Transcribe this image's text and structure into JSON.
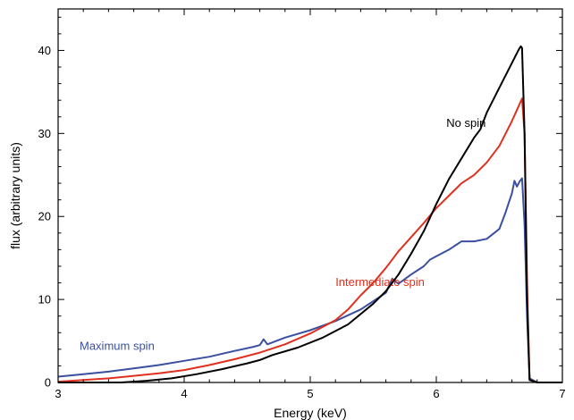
{
  "chart_data": {
    "type": "line",
    "title": "",
    "xlabel": "Energy (keV)",
    "ylabel": "flux (arbitrary units)",
    "xlim": [
      3,
      7
    ],
    "ylim": [
      0,
      45
    ],
    "xticks": [
      3,
      4,
      5,
      6,
      7
    ],
    "yticks": [
      0,
      10,
      20,
      30,
      40
    ],
    "grid": false,
    "legend": "none",
    "series": [
      {
        "name": "Maximum spin",
        "color": "#3a4fa0",
        "label_at": [
          3.17,
          3.95
        ],
        "x": [
          3.0,
          3.2,
          3.4,
          3.6,
          3.8,
          4.0,
          4.2,
          4.4,
          4.55,
          4.6,
          4.63,
          4.66,
          4.8,
          5.0,
          5.2,
          5.4,
          5.6,
          5.65,
          5.7,
          5.8,
          5.9,
          5.95,
          6.0,
          6.1,
          6.2,
          6.3,
          6.4,
          6.5,
          6.55,
          6.6,
          6.62,
          6.64,
          6.66,
          6.68,
          6.7,
          6.72,
          6.74,
          6.8,
          7.0
        ],
        "y": [
          0.7,
          1.0,
          1.3,
          1.7,
          2.1,
          2.6,
          3.1,
          3.8,
          4.3,
          4.5,
          5.2,
          4.6,
          5.4,
          6.3,
          7.4,
          8.8,
          10.8,
          12.5,
          11.9,
          13.0,
          14.0,
          14.8,
          15.2,
          16.0,
          17.0,
          17.0,
          17.3,
          18.5,
          20.5,
          22.8,
          24.3,
          23.6,
          24.2,
          24.6,
          19.0,
          8.0,
          0.5,
          0.0,
          0.0
        ]
      },
      {
        "name": "Intermediate spin",
        "color": "#e0301e",
        "label_at": [
          5.2,
          11.6
        ],
        "x": [
          3.0,
          3.2,
          3.4,
          3.6,
          3.8,
          4.0,
          4.2,
          4.4,
          4.6,
          4.8,
          5.0,
          5.2,
          5.3,
          5.4,
          5.5,
          5.6,
          5.7,
          5.8,
          5.9,
          6.0,
          6.1,
          6.2,
          6.3,
          6.4,
          6.5,
          6.6,
          6.65,
          6.68,
          6.7,
          6.72,
          6.74,
          6.8,
          7.0
        ],
        "y": [
          0.1,
          0.3,
          0.5,
          0.8,
          1.1,
          1.5,
          2.1,
          2.8,
          3.6,
          4.6,
          5.9,
          7.5,
          8.8,
          10.5,
          12.0,
          13.8,
          15.8,
          17.5,
          19.2,
          21.0,
          22.5,
          24.0,
          25.0,
          26.5,
          28.5,
          31.5,
          33.2,
          34.2,
          30.0,
          12.0,
          0.3,
          0.0,
          0.0
        ]
      },
      {
        "name": "No spin",
        "color": "#000000",
        "label_at": [
          6.08,
          30.8
        ],
        "x": [
          3.0,
          3.3,
          3.5,
          3.7,
          3.9,
          4.1,
          4.3,
          4.5,
          4.6,
          4.7,
          4.9,
          5.1,
          5.3,
          5.5,
          5.6,
          5.7,
          5.8,
          5.9,
          6.0,
          6.1,
          6.2,
          6.3,
          6.35,
          6.4,
          6.5,
          6.6,
          6.65,
          6.67,
          6.68,
          6.7,
          6.72,
          6.74,
          6.8,
          7.0
        ],
        "y": [
          0.0,
          0.0,
          0.0,
          0.2,
          0.5,
          1.0,
          1.6,
          2.3,
          2.7,
          3.3,
          4.2,
          5.4,
          7.0,
          9.5,
          11.0,
          13.0,
          15.5,
          18.2,
          21.5,
          24.5,
          27.0,
          29.5,
          30.5,
          32.5,
          35.5,
          38.5,
          40.0,
          40.5,
          40.3,
          30.0,
          10.0,
          0.3,
          0.0,
          0.0
        ]
      }
    ]
  }
}
